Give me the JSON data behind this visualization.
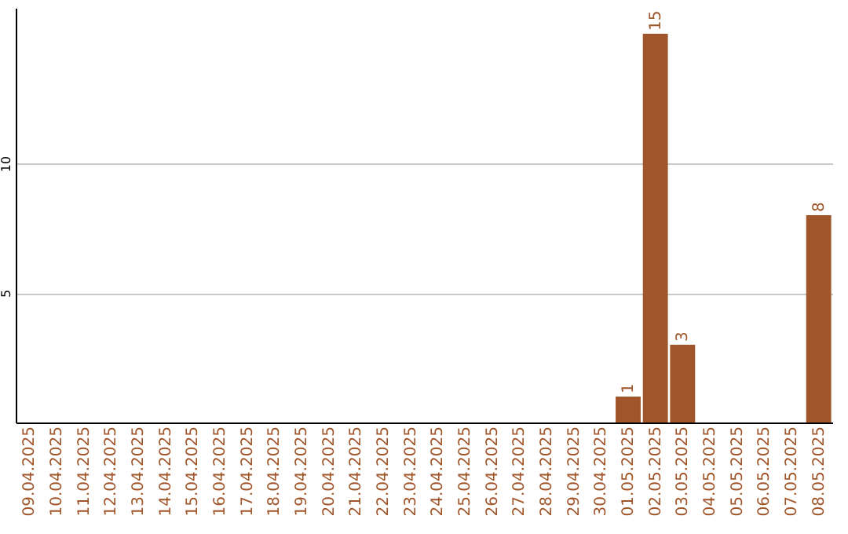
{
  "chart_data": {
    "type": "bar",
    "categories": [
      "09.04.2025",
      "10.04.2025",
      "11.04.2025",
      "12.04.2025",
      "13.04.2025",
      "14.04.2025",
      "15.04.2025",
      "16.04.2025",
      "17.04.2025",
      "18.04.2025",
      "19.04.2025",
      "20.04.2025",
      "21.04.2025",
      "22.04.2025",
      "23.04.2025",
      "24.04.2025",
      "25.04.2025",
      "26.04.2025",
      "27.04.2025",
      "28.04.2025",
      "29.04.2025",
      "30.04.2025",
      "01.05.2025",
      "02.05.2025",
      "03.05.2025",
      "04.05.2025",
      "05.05.2025",
      "06.05.2025",
      "07.05.2025",
      "08.05.2025"
    ],
    "values": [
      0,
      0,
      0,
      0,
      0,
      0,
      0,
      0,
      0,
      0,
      0,
      0,
      0,
      0,
      0,
      0,
      0,
      0,
      0,
      0,
      0,
      0,
      1,
      15,
      3,
      0,
      0,
      0,
      0,
      8
    ],
    "value_labels": [
      null,
      null,
      null,
      null,
      null,
      null,
      null,
      null,
      null,
      null,
      null,
      null,
      null,
      null,
      null,
      null,
      null,
      null,
      null,
      null,
      null,
      null,
      "1",
      "15",
      "3",
      null,
      null,
      null,
      null,
      "8"
    ],
    "color": "#a0562a",
    "ylim": [
      0,
      16
    ],
    "yticks": [
      5,
      10
    ],
    "grid": "y"
  }
}
